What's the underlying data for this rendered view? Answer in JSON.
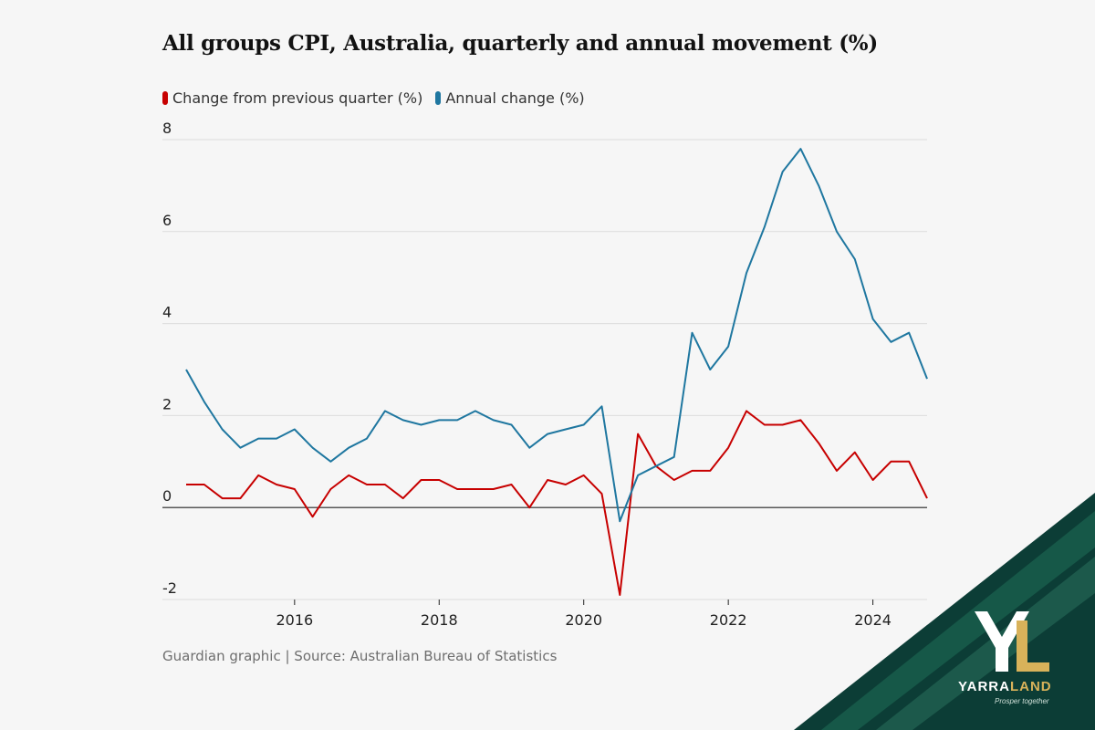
{
  "chart_data": {
    "type": "line",
    "title": "All groups CPI, Australia, quarterly and annual movement (%)",
    "xlabel": "",
    "ylabel": "",
    "ylim": [
      -2,
      8
    ],
    "yticks": [
      -2,
      0,
      2,
      4,
      6,
      8
    ],
    "xlim": [
      2014.5,
      2024.75
    ],
    "xticks": [
      2016,
      2018,
      2020,
      2022,
      2024
    ],
    "x": [
      2014.5,
      2014.75,
      2015.0,
      2015.25,
      2015.5,
      2015.75,
      2016.0,
      2016.25,
      2016.5,
      2016.75,
      2017.0,
      2017.25,
      2017.5,
      2017.75,
      2018.0,
      2018.25,
      2018.5,
      2018.75,
      2019.0,
      2019.25,
      2019.5,
      2019.75,
      2020.0,
      2020.25,
      2020.5,
      2020.75,
      2021.0,
      2021.25,
      2021.5,
      2021.75,
      2022.0,
      2022.25,
      2022.5,
      2022.75,
      2023.0,
      2023.25,
      2023.5,
      2023.75,
      2024.0,
      2024.25,
      2024.5,
      2024.75
    ],
    "series": [
      {
        "name": "Change from previous quarter (%)",
        "color": "#c70000",
        "values": [
          0.5,
          0.5,
          0.2,
          0.2,
          0.7,
          0.5,
          0.4,
          -0.2,
          0.4,
          0.7,
          0.5,
          0.5,
          0.2,
          0.6,
          0.6,
          0.4,
          0.4,
          0.4,
          0.5,
          0.0,
          0.6,
          0.5,
          0.7,
          0.3,
          -1.9,
          1.6,
          0.9,
          0.6,
          0.8,
          0.8,
          1.3,
          2.1,
          1.8,
          1.8,
          1.9,
          1.4,
          0.8,
          1.2,
          0.6,
          1.0,
          1.0,
          0.2
        ]
      },
      {
        "name": "Annual change (%)",
        "color": "#1f77a0",
        "values": [
          3.0,
          2.3,
          1.7,
          1.3,
          1.5,
          1.5,
          1.7,
          1.3,
          1.0,
          1.3,
          1.5,
          2.1,
          1.9,
          1.8,
          1.9,
          1.9,
          2.1,
          1.9,
          1.8,
          1.3,
          1.6,
          1.7,
          1.8,
          2.2,
          -0.3,
          0.7,
          0.9,
          1.1,
          3.8,
          3.0,
          3.5,
          5.1,
          6.1,
          7.3,
          7.8,
          7.0,
          6.0,
          5.4,
          4.1,
          3.6,
          3.8,
          2.8
        ]
      }
    ]
  },
  "legend": {
    "quarterly_label": "Change from previous quarter (%)",
    "annual_label": "Annual change (%)"
  },
  "source": "Guardian graphic | Source: Australian Bureau of Statistics",
  "brand": {
    "name_part1": "YARRA",
    "name_part2": "LAND",
    "tagline": "Prosper together",
    "colors": {
      "dark": "#0c3d36",
      "mid": "#1e6a55",
      "gold": "#d8b25a"
    }
  }
}
